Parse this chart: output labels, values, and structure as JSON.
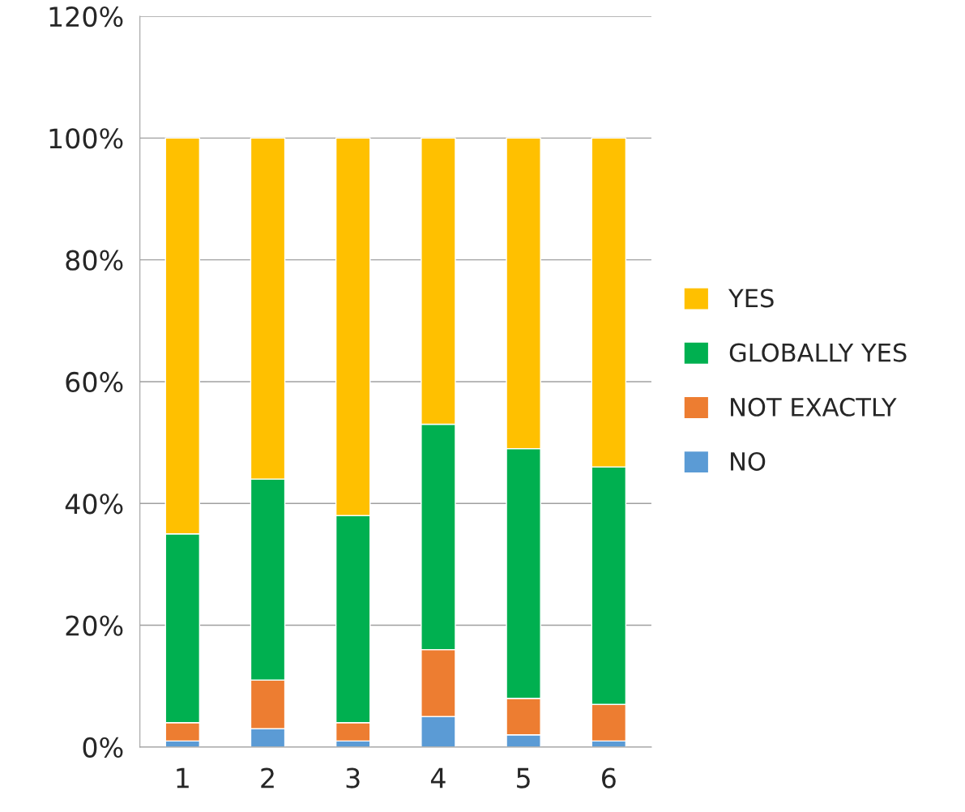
{
  "chart_data": {
    "type": "bar",
    "stacked": true,
    "categories": [
      "1",
      "2",
      "3",
      "4",
      "5",
      "6"
    ],
    "series": [
      {
        "name": "NO",
        "color": "#5b9bd5",
        "values": [
          1,
          3,
          1,
          5,
          2,
          1
        ]
      },
      {
        "name": "NOT EXACTLY",
        "color": "#ed7d31",
        "values": [
          3,
          8,
          3,
          11,
          6,
          6
        ]
      },
      {
        "name": "GLOBALLY YES",
        "color": "#00b050",
        "values": [
          31,
          33,
          34,
          37,
          41,
          39
        ]
      },
      {
        "name": "YES",
        "color": "#ffc000",
        "values": [
          65,
          56,
          62,
          47,
          51,
          54
        ]
      }
    ],
    "ylim": [
      0,
      120
    ],
    "yticks": [
      {
        "value": 0,
        "label": "0%"
      },
      {
        "value": 20,
        "label": "20%"
      },
      {
        "value": 40,
        "label": "40%"
      },
      {
        "value": 60,
        "label": "60%"
      },
      {
        "value": 80,
        "label": "80%"
      },
      {
        "value": 100,
        "label": "100%"
      },
      {
        "value": 120,
        "label": "120%"
      }
    ],
    "grid": "y",
    "legend": "right"
  }
}
